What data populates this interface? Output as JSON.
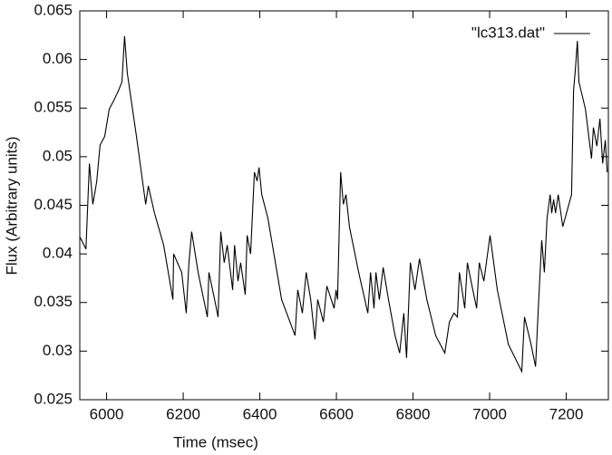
{
  "chart_data": {
    "type": "line",
    "xlabel": "Time (msec)",
    "ylabel": "Flux (Arbitrary units)",
    "xlim": [
      5930,
      7310
    ],
    "ylim": [
      0.025,
      0.065
    ],
    "xticks": [
      6000,
      6200,
      6400,
      6600,
      6800,
      7000,
      7200
    ],
    "yticks": [
      0.025,
      0.03,
      0.035,
      0.04,
      0.045,
      0.05,
      0.055,
      0.06,
      0.065
    ],
    "legend": "upper right",
    "grid": false,
    "x": [
      5931,
      5946,
      5955,
      5964,
      5974,
      5983,
      5995,
      6007,
      6019,
      6031,
      6040,
      6047,
      6054,
      6078,
      6102,
      6109,
      6125,
      6149,
      6173,
      6175,
      6196,
      6208,
      6215,
      6222,
      6239,
      6263,
      6267,
      6282,
      6291,
      6298,
      6307,
      6315,
      6329,
      6334,
      6343,
      6350,
      6362,
      6367,
      6376,
      6386,
      6393,
      6398,
      6405,
      6421,
      6433,
      6457,
      6492,
      6499,
      6511,
      6521,
      6533,
      6544,
      6551,
      6566,
      6575,
      6594,
      6599,
      6603,
      6611,
      6618,
      6625,
      6634,
      6658,
      6682,
      6689,
      6698,
      6703,
      6712,
      6722,
      6736,
      6753,
      6765,
      6776,
      6783,
      6793,
      6805,
      6817,
      6836,
      6859,
      6883,
      6895,
      6907,
      6916,
      6921,
      6935,
      6942,
      6954,
      6966,
      6973,
      6985,
      7001,
      7020,
      7049,
      7084,
      7091,
      7108,
      7120,
      7127,
      7136,
      7143,
      7150,
      7158,
      7162,
      7167,
      7172,
      7179,
      7191,
      7214,
      7219,
      7224,
      7229,
      7233,
      7250,
      7266,
      7271,
      7280,
      7288,
      7295,
      7302,
      7307
    ],
    "series": [
      {
        "name": "\"lc313.dat\"",
        "color": "#000000",
        "values": [
          0.0417,
          0.0405,
          0.0493,
          0.0451,
          0.0474,
          0.0512,
          0.0521,
          0.0549,
          0.0558,
          0.0568,
          0.0577,
          0.0624,
          0.0586,
          0.0521,
          0.0451,
          0.047,
          0.0442,
          0.0409,
          0.0353,
          0.04,
          0.0381,
          0.0339,
          0.0391,
          0.0423,
          0.0381,
          0.0335,
          0.0381,
          0.0353,
          0.0335,
          0.0423,
          0.0391,
          0.0409,
          0.0363,
          0.0409,
          0.0372,
          0.0391,
          0.0358,
          0.0419,
          0.04,
          0.0484,
          0.0475,
          0.0489,
          0.0461,
          0.0437,
          0.0409,
          0.0353,
          0.0316,
          0.0363,
          0.0339,
          0.0381,
          0.0353,
          0.0312,
          0.0353,
          0.033,
          0.0367,
          0.0344,
          0.0363,
          0.0353,
          0.0484,
          0.0451,
          0.0461,
          0.0428,
          0.0381,
          0.0339,
          0.0381,
          0.0344,
          0.0381,
          0.0353,
          0.0386,
          0.0353,
          0.0316,
          0.0298,
          0.0339,
          0.0293,
          0.0391,
          0.0363,
          0.0395,
          0.0353,
          0.0316,
          0.0298,
          0.033,
          0.0339,
          0.0335,
          0.0381,
          0.0344,
          0.0391,
          0.0367,
          0.0344,
          0.0391,
          0.0372,
          0.0419,
          0.0363,
          0.0307,
          0.0279,
          0.0335,
          0.0307,
          0.0284,
          0.0344,
          0.0414,
          0.0381,
          0.0437,
          0.0461,
          0.0442,
          0.0456,
          0.0442,
          0.0461,
          0.0428,
          0.0461,
          0.0568,
          0.0591,
          0.0619,
          0.0577,
          0.0549,
          0.0498,
          0.053,
          0.0511,
          0.0539,
          0.0493,
          0.0517,
          0.0484
        ]
      }
    ]
  }
}
